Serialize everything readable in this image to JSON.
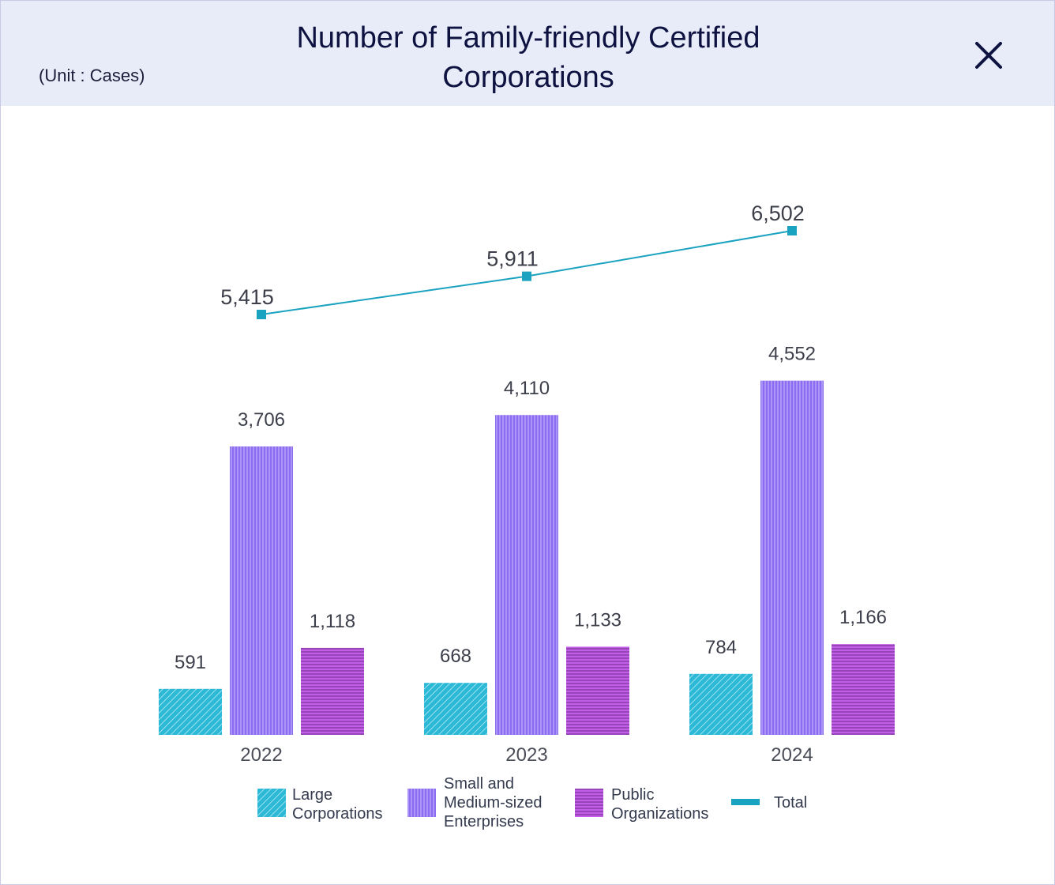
{
  "header": {
    "unit_label": "(Unit : Cases)",
    "title_line1": "Number of Family-friendly Certified",
    "title_line2": "Corporations"
  },
  "colors": {
    "header_bg": "#e8ecf8",
    "title": "#0e1240",
    "large": "#2bb9d6",
    "sme": "#8b6cf2",
    "public": "#c25ee8",
    "total_line": "#1aa3c0"
  },
  "icons": {
    "close": "close-icon"
  },
  "chart_data": {
    "type": "bar",
    "title": "Number of Family-friendly Certified Corporations",
    "unit": "(Unit : Cases)",
    "categories": [
      "2022",
      "2023",
      "2024"
    ],
    "series": [
      {
        "name": "Large Corporations",
        "values": [
          591,
          668,
          784
        ],
        "labels": [
          "591",
          "668",
          "784"
        ]
      },
      {
        "name": "Small and Medium-sized Enterprises",
        "values": [
          3706,
          4110,
          4552
        ],
        "labels": [
          "3,706",
          "4,110",
          "4,552"
        ]
      },
      {
        "name": "Public Organizations",
        "values": [
          1118,
          1133,
          1166
        ],
        "labels": [
          "1,118",
          "1,133",
          "1,166"
        ]
      }
    ],
    "line_series": {
      "name": "Total",
      "values": [
        5415,
        5911,
        6502
      ],
      "labels": [
        "5,415",
        "5,911",
        "6,502"
      ]
    },
    "legend": [
      {
        "label": "Large\nCorporations"
      },
      {
        "label": "Small and\nMedium-sized\nEnterprises"
      },
      {
        "label": "Public\nOrganizations"
      },
      {
        "label": "Total"
      }
    ],
    "legend_position": "bottom",
    "grid": false
  }
}
